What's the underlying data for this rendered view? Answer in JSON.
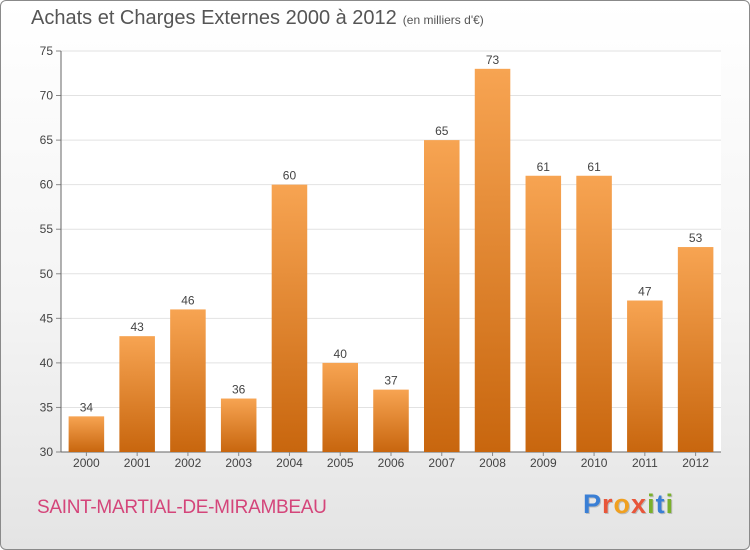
{
  "header": {
    "title": "Achats et Charges Externes 2000 à 2012",
    "unit": "(en milliers d'€)"
  },
  "footer": {
    "commune": "SAINT-MARTIAL-DE-MIRAMBEAU",
    "logo_text": "Proxiti",
    "logo_colors": [
      "#3a7fd5",
      "#e8563a",
      "#f0a020",
      "#e8563a",
      "#7ab02c",
      "#3a7fd5",
      "#7ab02c"
    ]
  },
  "chart_data": {
    "type": "bar",
    "title": "Achats et Charges Externes 2000 à 2012",
    "categories": [
      "2000",
      "2001",
      "2002",
      "2003",
      "2004",
      "2005",
      "2006",
      "2007",
      "2008",
      "2009",
      "2010",
      "2011",
      "2012"
    ],
    "values": [
      34,
      43,
      46,
      36,
      60,
      40,
      37,
      65,
      73,
      61,
      61,
      47,
      53
    ],
    "ylim": [
      30,
      75
    ],
    "yticks": [
      30,
      35,
      40,
      45,
      50,
      55,
      60,
      65,
      70,
      75
    ],
    "grid": true,
    "bar_color_top": "#f7a452",
    "bar_color_bottom": "#c8660e"
  }
}
